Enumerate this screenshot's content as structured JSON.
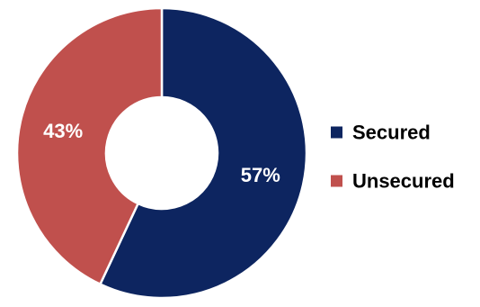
{
  "chart_data": {
    "type": "pie",
    "subtype": "donut",
    "categories": [
      "Secured",
      "Unsecured"
    ],
    "values": [
      57,
      43
    ],
    "data_labels": [
      "57%",
      "43%"
    ],
    "colors": [
      "#0d2560",
      "#c0504d"
    ],
    "legend_position": "right",
    "title": ""
  }
}
